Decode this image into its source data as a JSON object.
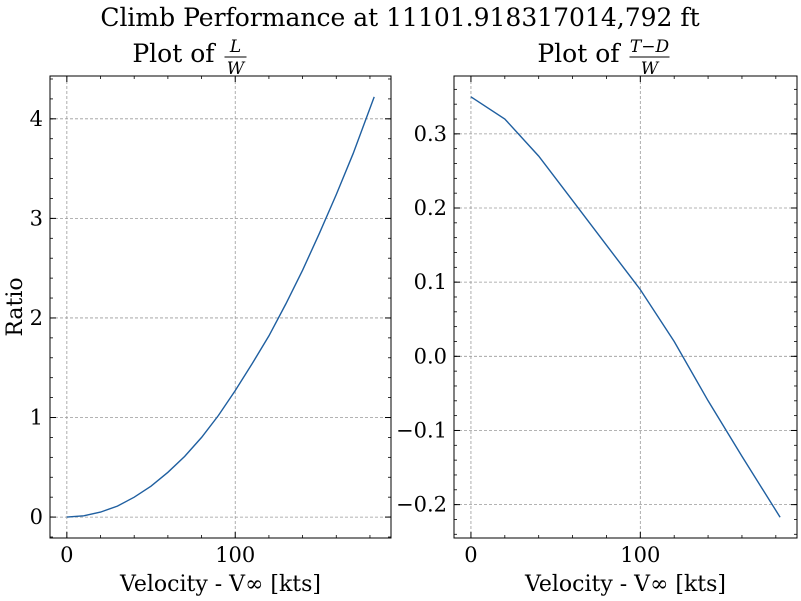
{
  "chart_data": {
    "suptitle": "Climb Performance at 11101.918317014,792 ft",
    "panels": [
      {
        "type": "line",
        "title_prefix": "Plot of",
        "title_fraction": {
          "numerator": "L",
          "denominator": "W"
        },
        "xlabel": "Velocity - V∞ [kts]",
        "ylabel": "Ratio",
        "xlim": [
          -10,
          192.5
        ],
        "ylim": [
          -0.21,
          4.43
        ],
        "xticks": [
          0,
          100
        ],
        "yticks": [
          0,
          1,
          2,
          3,
          4
        ],
        "grid": true,
        "line_color": "#1f5fa0",
        "series": [
          {
            "x": [
              0,
              10,
              20,
              30,
              40,
              50,
              60,
              70,
              80,
              90,
              100,
              110,
              120,
              130,
              140,
              150,
              160,
              170,
              182.5
            ],
            "y": [
              0.0,
              0.013,
              0.05,
              0.11,
              0.2,
              0.31,
              0.45,
              0.61,
              0.8,
              1.02,
              1.27,
              1.54,
              1.82,
              2.14,
              2.48,
              2.85,
              3.24,
              3.65,
              4.22
            ]
          }
        ]
      },
      {
        "type": "line",
        "title_prefix": "Plot of",
        "title_fraction": {
          "numerator": "T−D",
          "denominator": "W"
        },
        "xlabel": "Velocity - V∞ [kts]",
        "ylabel": "",
        "xlim": [
          -10,
          192.5
        ],
        "ylim": [
          -0.245,
          0.378
        ],
        "xticks": [
          0,
          100
        ],
        "yticks": [
          -0.2,
          -0.1,
          0.0,
          0.1,
          0.2,
          0.3
        ],
        "ytick_labels": [
          "−0.2",
          "−0.1",
          "0.0",
          "0.1",
          "0.2",
          "0.3"
        ],
        "grid": true,
        "line_color": "#1f5fa0",
        "series": [
          {
            "x": [
              0,
              20,
              40,
              60,
              80,
              100,
              120,
              140,
              160,
              182.5
            ],
            "y": [
              0.35,
              0.32,
              0.27,
              0.21,
              0.15,
              0.09,
              0.02,
              -0.06,
              -0.135,
              -0.217
            ]
          }
        ]
      }
    ]
  }
}
